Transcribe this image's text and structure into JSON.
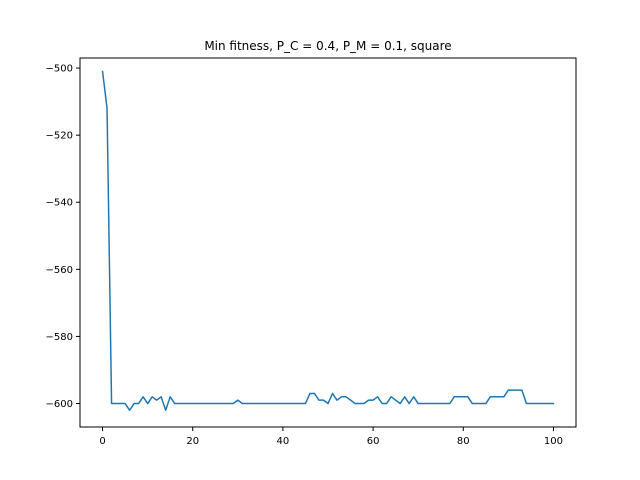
{
  "chart_data": {
    "type": "line",
    "title": "Min fitness, P_C = 0.4, P_M = 0.1, square",
    "xlabel": "",
    "ylabel": "",
    "xlim": [
      -5,
      105
    ],
    "ylim": [
      -607,
      -497
    ],
    "xticks": [
      0,
      20,
      40,
      60,
      80,
      100
    ],
    "yticks": [
      -600,
      -580,
      -560,
      -540,
      -520,
      -500
    ],
    "xtick_labels": [
      "0",
      "20",
      "40",
      "60",
      "80",
      "100"
    ],
    "ytick_labels": [
      "−600",
      "−580",
      "−560",
      "−540",
      "−520",
      "−500"
    ],
    "grid": false,
    "series": [
      {
        "color": "#1f77b4",
        "x": [
          0,
          1,
          2,
          3,
          4,
          5,
          6,
          7,
          8,
          9,
          10,
          11,
          12,
          13,
          14,
          15,
          16,
          17,
          18,
          19,
          20,
          21,
          22,
          23,
          24,
          25,
          26,
          27,
          28,
          29,
          30,
          31,
          32,
          33,
          34,
          35,
          36,
          37,
          38,
          39,
          40,
          41,
          42,
          43,
          44,
          45,
          46,
          47,
          48,
          49,
          50,
          51,
          52,
          53,
          54,
          55,
          56,
          57,
          58,
          59,
          60,
          61,
          62,
          63,
          64,
          65,
          66,
          67,
          68,
          69,
          70,
          71,
          72,
          73,
          74,
          75,
          76,
          77,
          78,
          79,
          80,
          81,
          82,
          83,
          84,
          85,
          86,
          87,
          88,
          89,
          90,
          91,
          92,
          93,
          94,
          95,
          96,
          97,
          98,
          99,
          100
        ],
        "y": [
          -501,
          -512,
          -600,
          -600,
          -600,
          -600,
          -602,
          -600,
          -600,
          -598,
          -600,
          -598,
          -599,
          -598,
          -602,
          -598,
          -600,
          -600,
          -600,
          -600,
          -600,
          -600,
          -600,
          -600,
          -600,
          -600,
          -600,
          -600,
          -600,
          -600,
          -599,
          -600,
          -600,
          -600,
          -600,
          -600,
          -600,
          -600,
          -600,
          -600,
          -600,
          -600,
          -600,
          -600,
          -600,
          -600,
          -597,
          -597,
          -599,
          -599,
          -600,
          -597,
          -599,
          -598,
          -598,
          -599,
          -600,
          -600,
          -600,
          -599,
          -599,
          -598,
          -600,
          -600,
          -598,
          -599,
          -600,
          -598,
          -600,
          -598,
          -600,
          -600,
          -600,
          -600,
          -600,
          -600,
          -600,
          -600,
          -598,
          -598,
          -598,
          -598,
          -600,
          -600,
          -600,
          -600,
          -598,
          -598,
          -598,
          -598,
          -596,
          -596,
          -596,
          -596,
          -600,
          -600,
          -600,
          -600,
          -600,
          -600,
          -600
        ]
      }
    ]
  }
}
